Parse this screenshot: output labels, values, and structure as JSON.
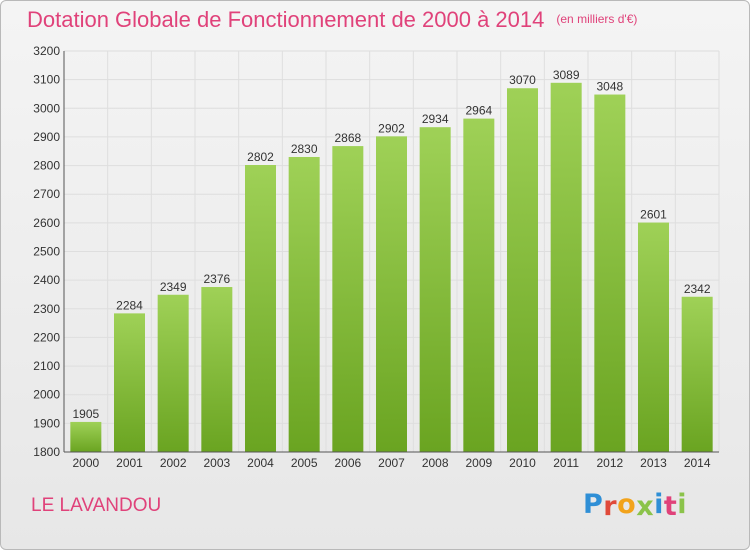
{
  "header": {
    "title": "Dotation Globale de Fonctionnement de 2000 à 2014",
    "unit_note": "(en milliers d'€)"
  },
  "footer": {
    "commune": "LE LAVANDOU",
    "brand": "Proxiti",
    "brand_colors": [
      "#2f8fd6",
      "#e04a3a",
      "#f2a31b",
      "#8bc34a",
      "#2f8fd6",
      "#e0427a",
      "#8bc34a"
    ]
  },
  "colors": {
    "bar_top": "#9fd157",
    "bar_bottom": "#6aa421",
    "accent": "#e0427a",
    "grid": "#dedede"
  },
  "chart_data": {
    "type": "bar",
    "title": "Dotation Globale de Fonctionnement de 2000 à 2014",
    "subtitle": "(en milliers d'€)",
    "xlabel": "",
    "ylabel": "",
    "categories": [
      "2000",
      "2001",
      "2002",
      "2003",
      "2004",
      "2005",
      "2006",
      "2007",
      "2008",
      "2009",
      "2010",
      "2011",
      "2012",
      "2013",
      "2014"
    ],
    "values": [
      1905,
      2284,
      2349,
      2376,
      2802,
      2830,
      2868,
      2902,
      2934,
      2964,
      3070,
      3089,
      3048,
      2601,
      2342
    ],
    "ylim": [
      1800,
      3200
    ],
    "yticks": [
      1800,
      1900,
      2000,
      2100,
      2200,
      2300,
      2400,
      2500,
      2600,
      2700,
      2800,
      2900,
      3000,
      3100,
      3200
    ],
    "grid": true,
    "legend": "none"
  }
}
